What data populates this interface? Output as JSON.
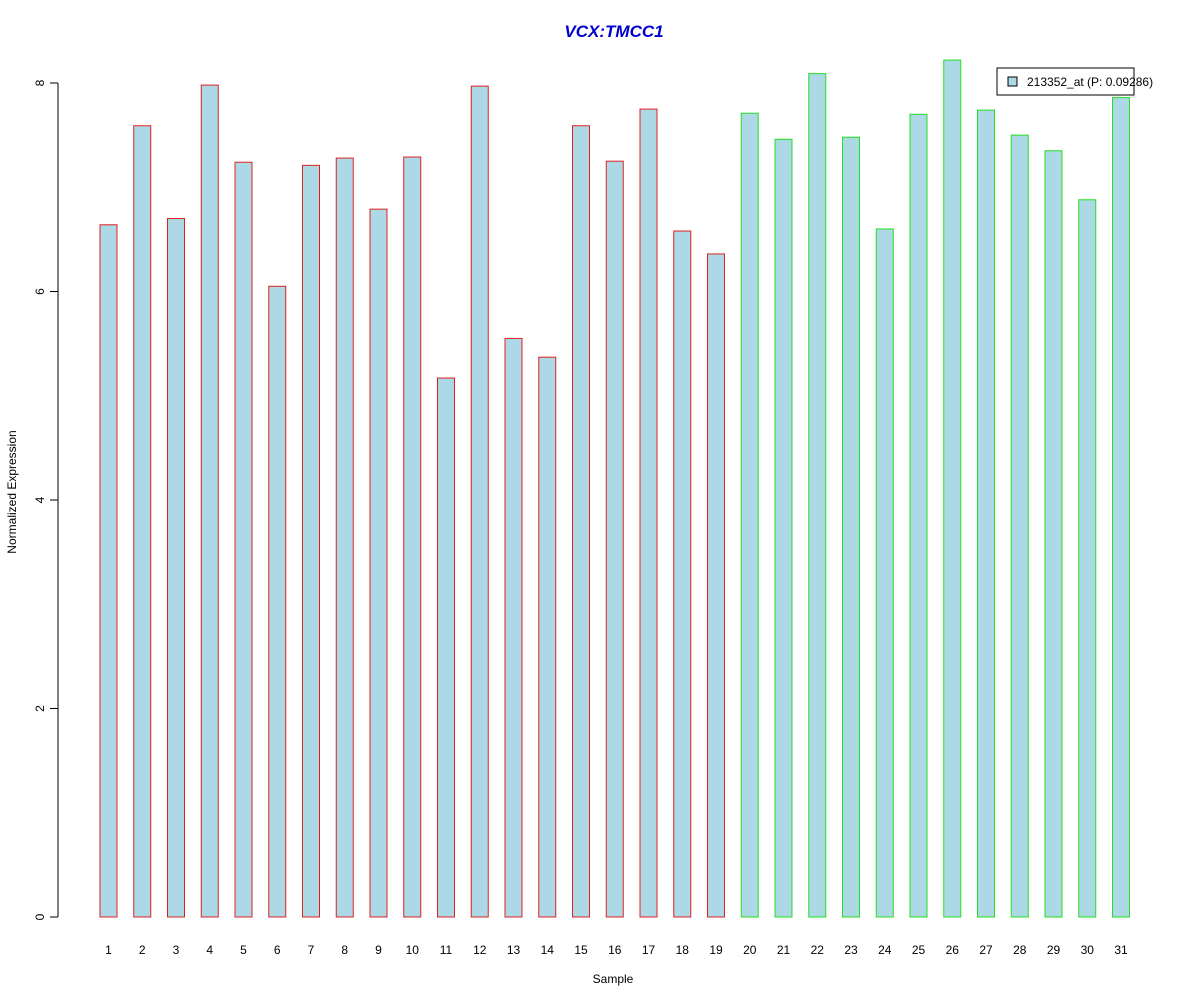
{
  "chart_data": {
    "type": "bar",
    "title": "VCX:TMCC1",
    "xlabel": "Sample",
    "ylabel": "Normalized Expression",
    "categories": [
      "1",
      "2",
      "3",
      "4",
      "5",
      "6",
      "7",
      "8",
      "9",
      "10",
      "11",
      "12",
      "13",
      "14",
      "15",
      "16",
      "17",
      "18",
      "19",
      "20",
      "21",
      "22",
      "23",
      "24",
      "25",
      "26",
      "27",
      "28",
      "29",
      "30",
      "31"
    ],
    "series": [
      {
        "name": "213352_at (P: 0.09286)",
        "values": [
          6.64,
          7.59,
          6.7,
          7.98,
          7.24,
          6.05,
          7.21,
          7.28,
          6.79,
          7.29,
          5.17,
          7.97,
          5.55,
          5.37,
          7.59,
          7.25,
          7.75,
          6.58,
          6.36,
          7.71,
          7.46,
          8.09,
          7.48,
          6.6,
          7.7,
          8.22,
          7.74,
          7.5,
          7.35,
          6.88,
          7.86
        ]
      }
    ],
    "groups": [
      {
        "samples": "1-19",
        "border_color": "#e02020"
      },
      {
        "samples": "20-31",
        "border_color": "#20e020"
      }
    ],
    "yticks": [
      0,
      2,
      4,
      6,
      8
    ],
    "ylim": [
      0,
      8.22
    ],
    "grid": false,
    "legend_position": "top-right",
    "colors": {
      "bar_fill": "#add8e6",
      "group1_border": "#e02020",
      "group2_border": "#20e020",
      "title": "#0000cc"
    }
  }
}
